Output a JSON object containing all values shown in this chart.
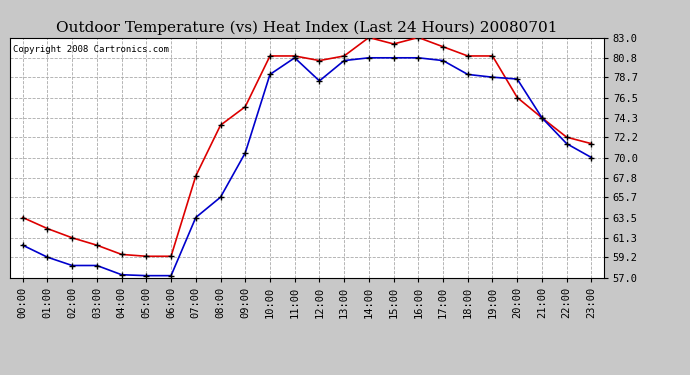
{
  "title": "Outdoor Temperature (vs) Heat Index (Last 24 Hours) 20080701",
  "copyright": "Copyright 2008 Cartronics.com",
  "hours": [
    "00:00",
    "01:00",
    "02:00",
    "03:00",
    "04:00",
    "05:00",
    "06:00",
    "07:00",
    "08:00",
    "09:00",
    "10:00",
    "11:00",
    "12:00",
    "13:00",
    "14:00",
    "15:00",
    "16:00",
    "17:00",
    "18:00",
    "19:00",
    "20:00",
    "21:00",
    "22:00",
    "23:00"
  ],
  "temp_blue": [
    60.5,
    59.2,
    58.3,
    58.3,
    57.3,
    57.2,
    57.2,
    63.5,
    65.7,
    70.5,
    79.0,
    80.8,
    78.3,
    80.5,
    80.8,
    80.8,
    80.8,
    80.5,
    79.0,
    78.7,
    78.5,
    74.3,
    71.5,
    70.0
  ],
  "heat_red": [
    63.5,
    62.3,
    61.3,
    60.5,
    59.5,
    59.3,
    59.3,
    68.0,
    73.5,
    75.5,
    81.0,
    81.0,
    80.5,
    81.0,
    83.0,
    82.3,
    83.0,
    82.0,
    81.0,
    81.0,
    76.5,
    74.3,
    72.2,
    71.5
  ],
  "ylim_min": 57.0,
  "ylim_max": 83.0,
  "yticks": [
    57.0,
    59.2,
    61.3,
    63.5,
    65.7,
    67.8,
    70.0,
    72.2,
    74.3,
    76.5,
    78.7,
    80.8,
    83.0
  ],
  "bg_color": "#c8c8c8",
  "plot_bg": "#ffffff",
  "red_color": "#dd0000",
  "blue_color": "#0000cc",
  "grid_color": "#aaaaaa",
  "title_fontsize": 11,
  "tick_fontsize": 7.5,
  "copyright_fontsize": 6.5
}
